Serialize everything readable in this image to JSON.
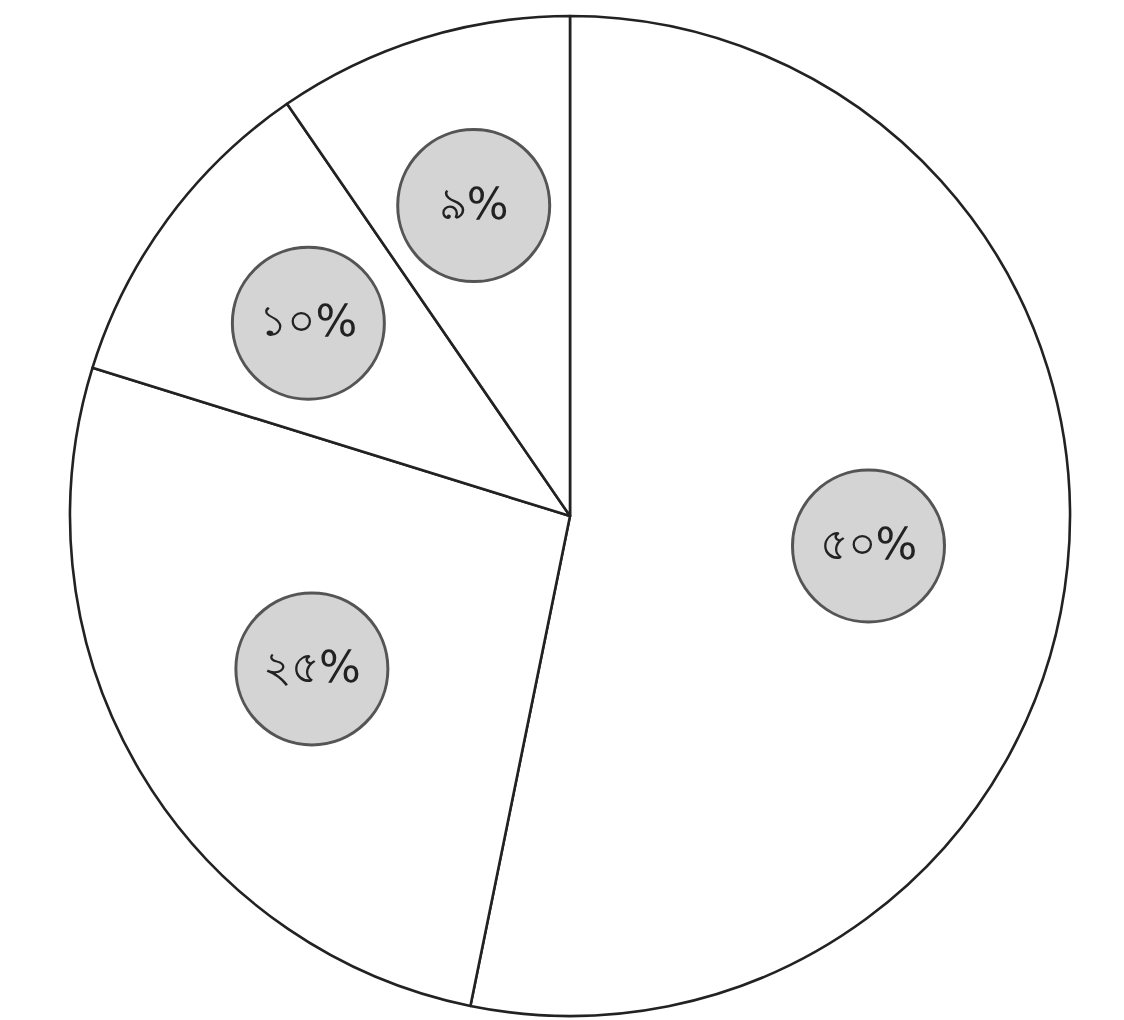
{
  "chart_data": {
    "type": "pie",
    "categories": [
      null,
      null,
      null,
      null
    ],
    "values": [
      50,
      25,
      10,
      9
    ],
    "value_labels": [
      "৫০%",
      "২৫%",
      "১০%",
      "৯%"
    ],
    "colors": [
      "#ffffff",
      "#ffffff",
      "#ffffff",
      "#ffffff"
    ]
  }
}
